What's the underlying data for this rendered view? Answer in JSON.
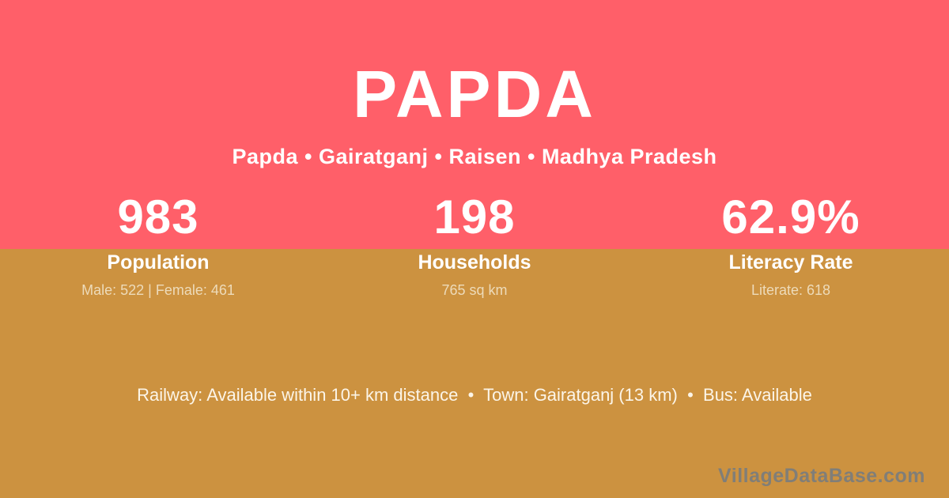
{
  "page": {
    "title": "PAPDA",
    "subtitle": "Papda • Gairatganj • Raisen • Madhya Pradesh",
    "stats": [
      {
        "value": "983",
        "label": "Population",
        "detail": "Male: 522 | Female: 461"
      },
      {
        "value": "198",
        "label": "Households",
        "detail": "765 sq km"
      },
      {
        "value": "62.9%",
        "label": "Literacy Rate",
        "detail": "Literate: 618"
      }
    ],
    "info_line": "Railway: Available within 10+ km distance  •  Town: Gairatganj (13 km)  •  Bus: Available",
    "watermark": "VillageDataBase.com",
    "colors": {
      "top_band": "#FF5F69",
      "bottom_band": "#CC9240",
      "primary_text": "#FFFFFF",
      "muted_text": "#EDDBBA",
      "info_text": "#FCF5E8",
      "watermark_text": "#807E78"
    }
  }
}
